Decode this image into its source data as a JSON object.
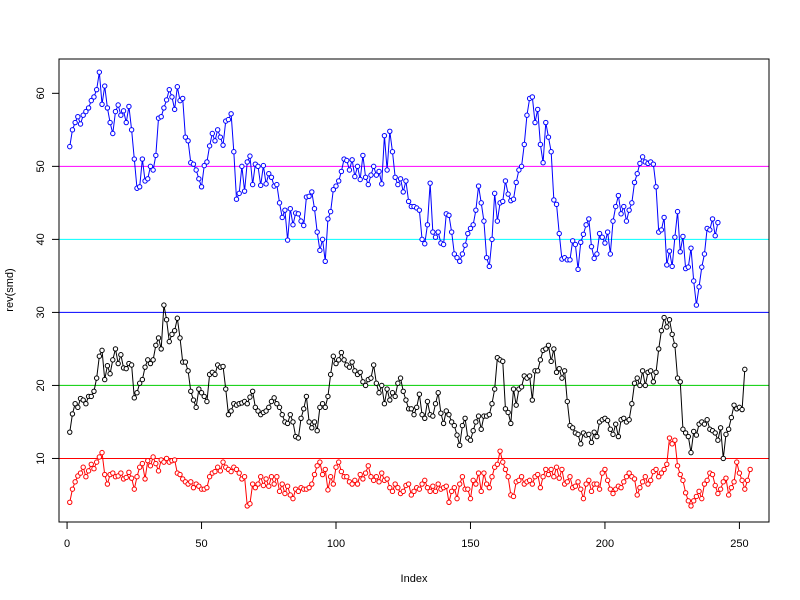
{
  "chart_data": {
    "type": "line",
    "xlabel": "Index",
    "ylabel": "rev(smd)",
    "xlim": [
      -3,
      261
    ],
    "ylim": [
      1.3,
      64.7
    ],
    "x_ticks": [
      0,
      50,
      100,
      150,
      200,
      250
    ],
    "y_ticks": [
      10,
      20,
      30,
      40,
      50,
      60
    ],
    "grid": false,
    "legend": "none",
    "hlines": [
      {
        "y": 10,
        "color": "#ff0000"
      },
      {
        "y": 20,
        "color": "#00cd00"
      },
      {
        "y": 30,
        "color": "#0000ff"
      },
      {
        "y": 40,
        "color": "#00ffff"
      },
      {
        "y": 50,
        "color": "#ff00ff"
      }
    ],
    "series": [
      {
        "color": "#0000ff",
        "values": [
          52.7,
          55.0,
          56.0,
          56.8,
          55.8,
          57.0,
          57.5,
          58.0,
          59.0,
          59.5,
          60.5,
          62.9,
          58.5,
          61.0,
          58.0,
          56.0,
          54.5,
          57.5,
          58.4,
          57.0,
          57.6,
          56.0,
          58.2,
          55.0,
          51.0,
          47.0,
          47.2,
          51.0,
          48.0,
          48.3,
          50.0,
          49.5,
          51.5,
          56.6,
          56.8,
          58.0,
          59.1,
          60.5,
          59.5,
          57.8,
          60.9,
          59.0,
          59.3,
          54.0,
          53.5,
          50.5,
          50.3,
          49.5,
          48.3,
          47.2,
          50.1,
          50.6,
          52.8,
          54.5,
          53.5,
          55.0,
          54.0,
          52.9,
          56.2,
          56.4,
          57.2,
          52.0,
          45.5,
          46.3,
          50.0,
          46.6,
          50.6,
          51.4,
          47.5,
          50.3,
          50.0,
          47.4,
          50.1,
          47.6,
          49.0,
          48.5,
          47.3,
          47.5,
          45.0,
          43.0,
          44.0,
          39.9,
          44.2,
          42.0,
          43.6,
          43.5,
          42.5,
          41.9,
          45.8,
          45.9,
          46.5,
          44.2,
          41.0,
          38.5,
          40.0,
          37.0,
          42.8,
          43.8,
          46.8,
          47.3,
          48.0,
          49.3,
          51.0,
          50.8,
          49.5,
          50.9,
          48.6,
          50.0,
          48.2,
          51.5,
          48.5,
          47.5,
          48.8,
          50.0,
          48.8,
          49.3,
          47.6,
          54.2,
          49.5,
          54.8,
          52.0,
          48.5,
          47.5,
          48.3,
          46.5,
          48.0,
          45.2,
          44.5,
          44.5,
          44.3,
          44.0,
          40.0,
          39.4,
          42.0,
          47.7,
          41.0,
          40.3,
          41.0,
          39.5,
          39.3,
          43.5,
          43.3,
          41.0,
          38.0,
          37.5,
          37.0,
          38.0,
          39.2,
          40.8,
          41.5,
          42.0,
          44.0,
          47.3,
          45.0,
          42.5,
          37.5,
          36.3,
          40.0,
          46.3,
          42.5,
          45.0,
          45.2,
          48.0,
          46.2,
          45.3,
          45.5,
          47.8,
          49.5,
          50.0,
          53.0,
          57.0,
          59.3,
          59.5,
          56.0,
          57.8,
          53.0,
          50.5,
          56.0,
          54.0,
          52.0,
          45.4,
          44.8,
          40.8,
          37.3,
          37.5,
          37.2,
          37.2,
          39.8,
          39.3,
          35.9,
          39.6,
          40.7,
          42.0,
          42.8,
          39.0,
          37.4,
          38.0,
          40.8,
          40.3,
          39.5,
          41.0,
          38.0,
          42.5,
          44.5,
          46.0,
          43.5,
          44.5,
          42.5,
          44.0,
          45.0,
          47.8,
          49.0,
          50.4,
          51.3,
          50.6,
          50.4,
          50.6,
          50.3,
          47.2,
          41.0,
          41.3,
          43.0,
          36.5,
          38.4,
          36.3,
          40.3,
          43.8,
          38.3,
          40.4,
          36.0,
          36.2,
          38.8,
          34.3,
          31.0,
          33.5,
          36.2,
          38.0,
          41.5,
          41.3,
          42.8,
          40.5,
          42.3
        ]
      },
      {
        "color": "#000000",
        "values": [
          13.6,
          16.1,
          17.5,
          17.0,
          18.2,
          18.0,
          17.5,
          18.5,
          18.5,
          19.2,
          21.0,
          24.0,
          24.8,
          20.8,
          22.7,
          21.6,
          23.5,
          25.0,
          23.0,
          24.2,
          22.4,
          22.3,
          23.0,
          22.8,
          18.3,
          19.0,
          20.3,
          20.8,
          22.5,
          23.5,
          23.0,
          23.5,
          25.5,
          26.5,
          25.0,
          31.0,
          29.0,
          26.0,
          27.0,
          27.5,
          29.2,
          26.5,
          23.2,
          23.2,
          22.0,
          19.2,
          18.0,
          17.0,
          19.5,
          19.0,
          18.5,
          17.8,
          21.5,
          21.8,
          21.5,
          22.8,
          22.5,
          22.6,
          19.5,
          16.0,
          16.5,
          17.5,
          17.3,
          17.5,
          17.6,
          17.8,
          17.5,
          18.4,
          19.2,
          17.0,
          16.5,
          16.0,
          16.3,
          16.5,
          17.0,
          17.8,
          18.3,
          17.5,
          17.0,
          16.0,
          15.0,
          14.8,
          16.0,
          15.0,
          13.0,
          12.8,
          15.5,
          16.8,
          18.5,
          15.0,
          14.2,
          15.0,
          13.8,
          17.0,
          17.5,
          17.0,
          18.5,
          21.5,
          24.0,
          23.0,
          23.5,
          24.5,
          23.5,
          22.8,
          22.5,
          23.2,
          22.0,
          21.5,
          21.8,
          20.5,
          20.0,
          20.8,
          21.0,
          22.8,
          20.3,
          19.0,
          20.0,
          17.5,
          19.5,
          18.0,
          19.0,
          18.5,
          20.3,
          21.0,
          19.2,
          18.0,
          16.8,
          16.8,
          16.0,
          17.0,
          18.8,
          16.0,
          15.5,
          17.8,
          16.0,
          15.8,
          17.5,
          19.0,
          16.2,
          14.8,
          16.5,
          16.0,
          15.0,
          14.5,
          13.2,
          11.8,
          14.5,
          15.5,
          12.8,
          12.5,
          13.8,
          15.0,
          15.8,
          14.0,
          15.8,
          15.8,
          16.0,
          17.5,
          19.5,
          23.8,
          23.5,
          23.3,
          16.8,
          16.3,
          14.8,
          19.5,
          17.3,
          19.5,
          19.8,
          21.3,
          21.0,
          21.3,
          18.0,
          22.0,
          22.0,
          23.5,
          24.8,
          25.0,
          25.5,
          23.3,
          25.0,
          21.8,
          22.3,
          21.0,
          22.0,
          17.8,
          14.5,
          14.2,
          13.5,
          13.3,
          12.0,
          13.5,
          13.2,
          13.3,
          12.2,
          13.6,
          13.0,
          15.0,
          15.3,
          15.5,
          15.2,
          14.0,
          13.3,
          14.7,
          13.0,
          15.3,
          15.5,
          15.0,
          15.3,
          17.5,
          20.3,
          21.0,
          20.0,
          22.0,
          20.0,
          21.8,
          22.0,
          20.5,
          21.8,
          25.0,
          27.5,
          29.3,
          28.0,
          29.0,
          27.0,
          25.5,
          21.0,
          20.5,
          14.0,
          13.5,
          13.0,
          10.8,
          13.7,
          13.2,
          14.7,
          15.0,
          14.7,
          15.3,
          14.0,
          13.8,
          13.5,
          12.5,
          14.2,
          10.0,
          13.3,
          14.0,
          15.6,
          17.3,
          16.8,
          17.0,
          16.7,
          22.2
        ]
      },
      {
        "color": "#ff0000",
        "values": [
          4.0,
          5.8,
          6.8,
          7.6,
          8.0,
          8.8,
          7.5,
          8.3,
          9.2,
          8.6,
          9.5,
          10.2,
          10.8,
          7.8,
          6.5,
          7.8,
          8.0,
          7.5,
          7.6,
          8.0,
          7.2,
          7.4,
          8.1,
          7.3,
          5.8,
          7.5,
          8.8,
          9.3,
          7.2,
          9.7,
          9.0,
          10.2,
          9.3,
          8.3,
          9.8,
          9.5,
          10.0,
          9.5,
          9.7,
          9.8,
          8.0,
          7.8,
          7.2,
          6.8,
          6.5,
          6.8,
          6.0,
          6.5,
          6.2,
          5.8,
          5.8,
          6.0,
          7.5,
          8.0,
          8.2,
          8.8,
          8.3,
          9.5,
          8.8,
          8.5,
          8.2,
          8.8,
          8.5,
          8.0,
          7.2,
          7.5,
          3.5,
          3.8,
          6.5,
          6.0,
          6.5,
          7.5,
          6.3,
          7.2,
          6.2,
          7.5,
          6.5,
          7.5,
          5.5,
          6.5,
          5.2,
          6.2,
          5.0,
          4.5,
          5.8,
          5.5,
          6.0,
          5.8,
          5.8,
          6.0,
          6.5,
          7.8,
          9.0,
          9.5,
          7.8,
          8.5,
          5.7,
          7.5,
          6.5,
          8.8,
          9.5,
          8.2,
          7.5,
          7.5,
          6.8,
          6.5,
          7.0,
          6.5,
          7.8,
          7.2,
          8.0,
          9.0,
          7.5,
          7.0,
          7.5,
          6.8,
          8.0,
          7.0,
          7.2,
          6.0,
          5.5,
          6.5,
          6.0,
          5.2,
          5.5,
          6.3,
          6.5,
          5.0,
          5.5,
          6.0,
          5.8,
          6.5,
          7.0,
          6.0,
          5.5,
          6.2,
          5.5,
          6.5,
          5.8,
          6.0,
          6.2,
          4.0,
          5.5,
          6.0,
          4.5,
          6.5,
          7.5,
          5.8,
          5.8,
          4.5,
          7.0,
          6.5,
          8.0,
          5.5,
          8.0,
          6.5,
          6.0,
          7.5,
          8.8,
          9.2,
          11.0,
          9.5,
          8.5,
          7.5,
          5.0,
          4.8,
          6.8,
          7.0,
          7.5,
          6.5,
          6.8,
          7.0,
          6.5,
          7.5,
          7.8,
          6.0,
          7.5,
          8.5,
          7.8,
          8.5,
          7.5,
          8.8,
          7.3,
          8.5,
          6.5,
          6.8,
          7.5,
          6.0,
          6.2,
          6.8,
          5.8,
          4.5,
          6.5,
          7.0,
          5.5,
          6.5,
          6.5,
          5.8,
          8.0,
          8.5,
          7.0,
          5.8,
          5.2,
          5.8,
          6.2,
          6.0,
          6.8,
          7.5,
          8.0,
          7.5,
          7.2,
          5.0,
          6.0,
          6.8,
          7.5,
          6.5,
          7.0,
          8.2,
          8.5,
          7.5,
          8.0,
          8.5,
          9.2,
          12.8,
          12.0,
          12.5,
          9.0,
          7.8,
          7.0,
          5.3,
          4.2,
          3.5,
          4.2,
          4.8,
          5.5,
          4.5,
          6.5,
          7.0,
          8.0,
          7.8,
          6.3,
          5.2,
          5.8,
          6.8,
          7.3,
          5.0,
          6.0,
          6.8,
          9.5,
          8.0,
          7.0,
          5.8,
          7.0,
          8.5
        ]
      }
    ]
  }
}
